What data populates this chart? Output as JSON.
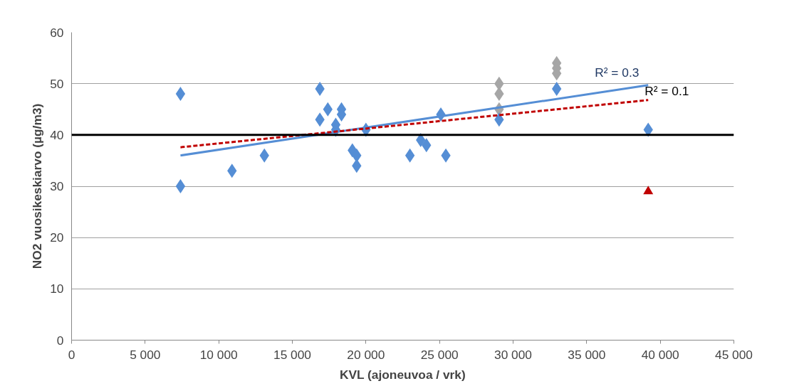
{
  "chart_data": {
    "type": "scatter",
    "xlabel": "KVL (ajoneuvoa / vrk)",
    "ylabel": "NO2 vuosikeskiarvo (µg/m3)",
    "xlim": [
      0,
      45000
    ],
    "ylim": [
      0,
      60
    ],
    "xticks": [
      0,
      {
        "value": 5000,
        "label": "5 000"
      },
      {
        "value": 10000,
        "label": "10 000"
      },
      {
        "value": 15000,
        "label": "15 000"
      },
      {
        "value": 20000,
        "label": "20 000"
      },
      {
        "value": 25000,
        "label": "25 000"
      },
      {
        "value": 30000,
        "label": "30 000"
      },
      {
        "value": 35000,
        "label": "35 000"
      },
      {
        "value": 40000,
        "label": "40 000"
      },
      {
        "value": 45000,
        "label": "45 000"
      }
    ],
    "yticks": [
      0,
      10,
      20,
      30,
      40,
      50,
      60
    ],
    "grid": "y",
    "series": [
      {
        "marker": "diamond",
        "color": "#a6a6a6",
        "x": [
          29050,
          29050,
          29050,
          32960,
          32960,
          32960
        ],
        "values": [
          50,
          48,
          45,
          54,
          53,
          52
        ]
      },
      {
        "marker": "diamond",
        "color": "#558ed5",
        "x": [
          7400,
          7400,
          10900,
          13100,
          16870,
          16870,
          17410,
          17950,
          17950,
          18340,
          18340,
          19080,
          19370,
          19370,
          20000,
          22990,
          23720,
          24110,
          25090,
          25430,
          29050,
          32960,
          39180
        ],
        "values": [
          48,
          30,
          33,
          36,
          49,
          43,
          45,
          42,
          41,
          45,
          44,
          37,
          36,
          34,
          41,
          36,
          39,
          38,
          44,
          36,
          43,
          49,
          41
        ]
      },
      {
        "marker": "triangle",
        "color": "#c00000",
        "x": [
          39180
        ],
        "values": [
          29
        ]
      },
      {
        "type": "line",
        "line_style": "solid",
        "color": "#558ed5",
        "x": [
          7400,
          39180
        ],
        "values": [
          36,
          49.7
        ]
      },
      {
        "type": "line",
        "line_style": "dashed",
        "color": "#c00000",
        "x": [
          7400,
          39180
        ],
        "values": [
          37.6,
          46.8
        ]
      }
    ],
    "ref_lines": [
      {
        "axis": "y",
        "value": 40,
        "color": "#000000",
        "line_style": "solid"
      }
    ],
    "annotations": [
      {
        "text": "R² = 0.3",
        "x": 39180,
        "y": 49.7
      },
      {
        "text": "R² = 0.1",
        "x": 39180,
        "y": 46.8
      }
    ]
  }
}
